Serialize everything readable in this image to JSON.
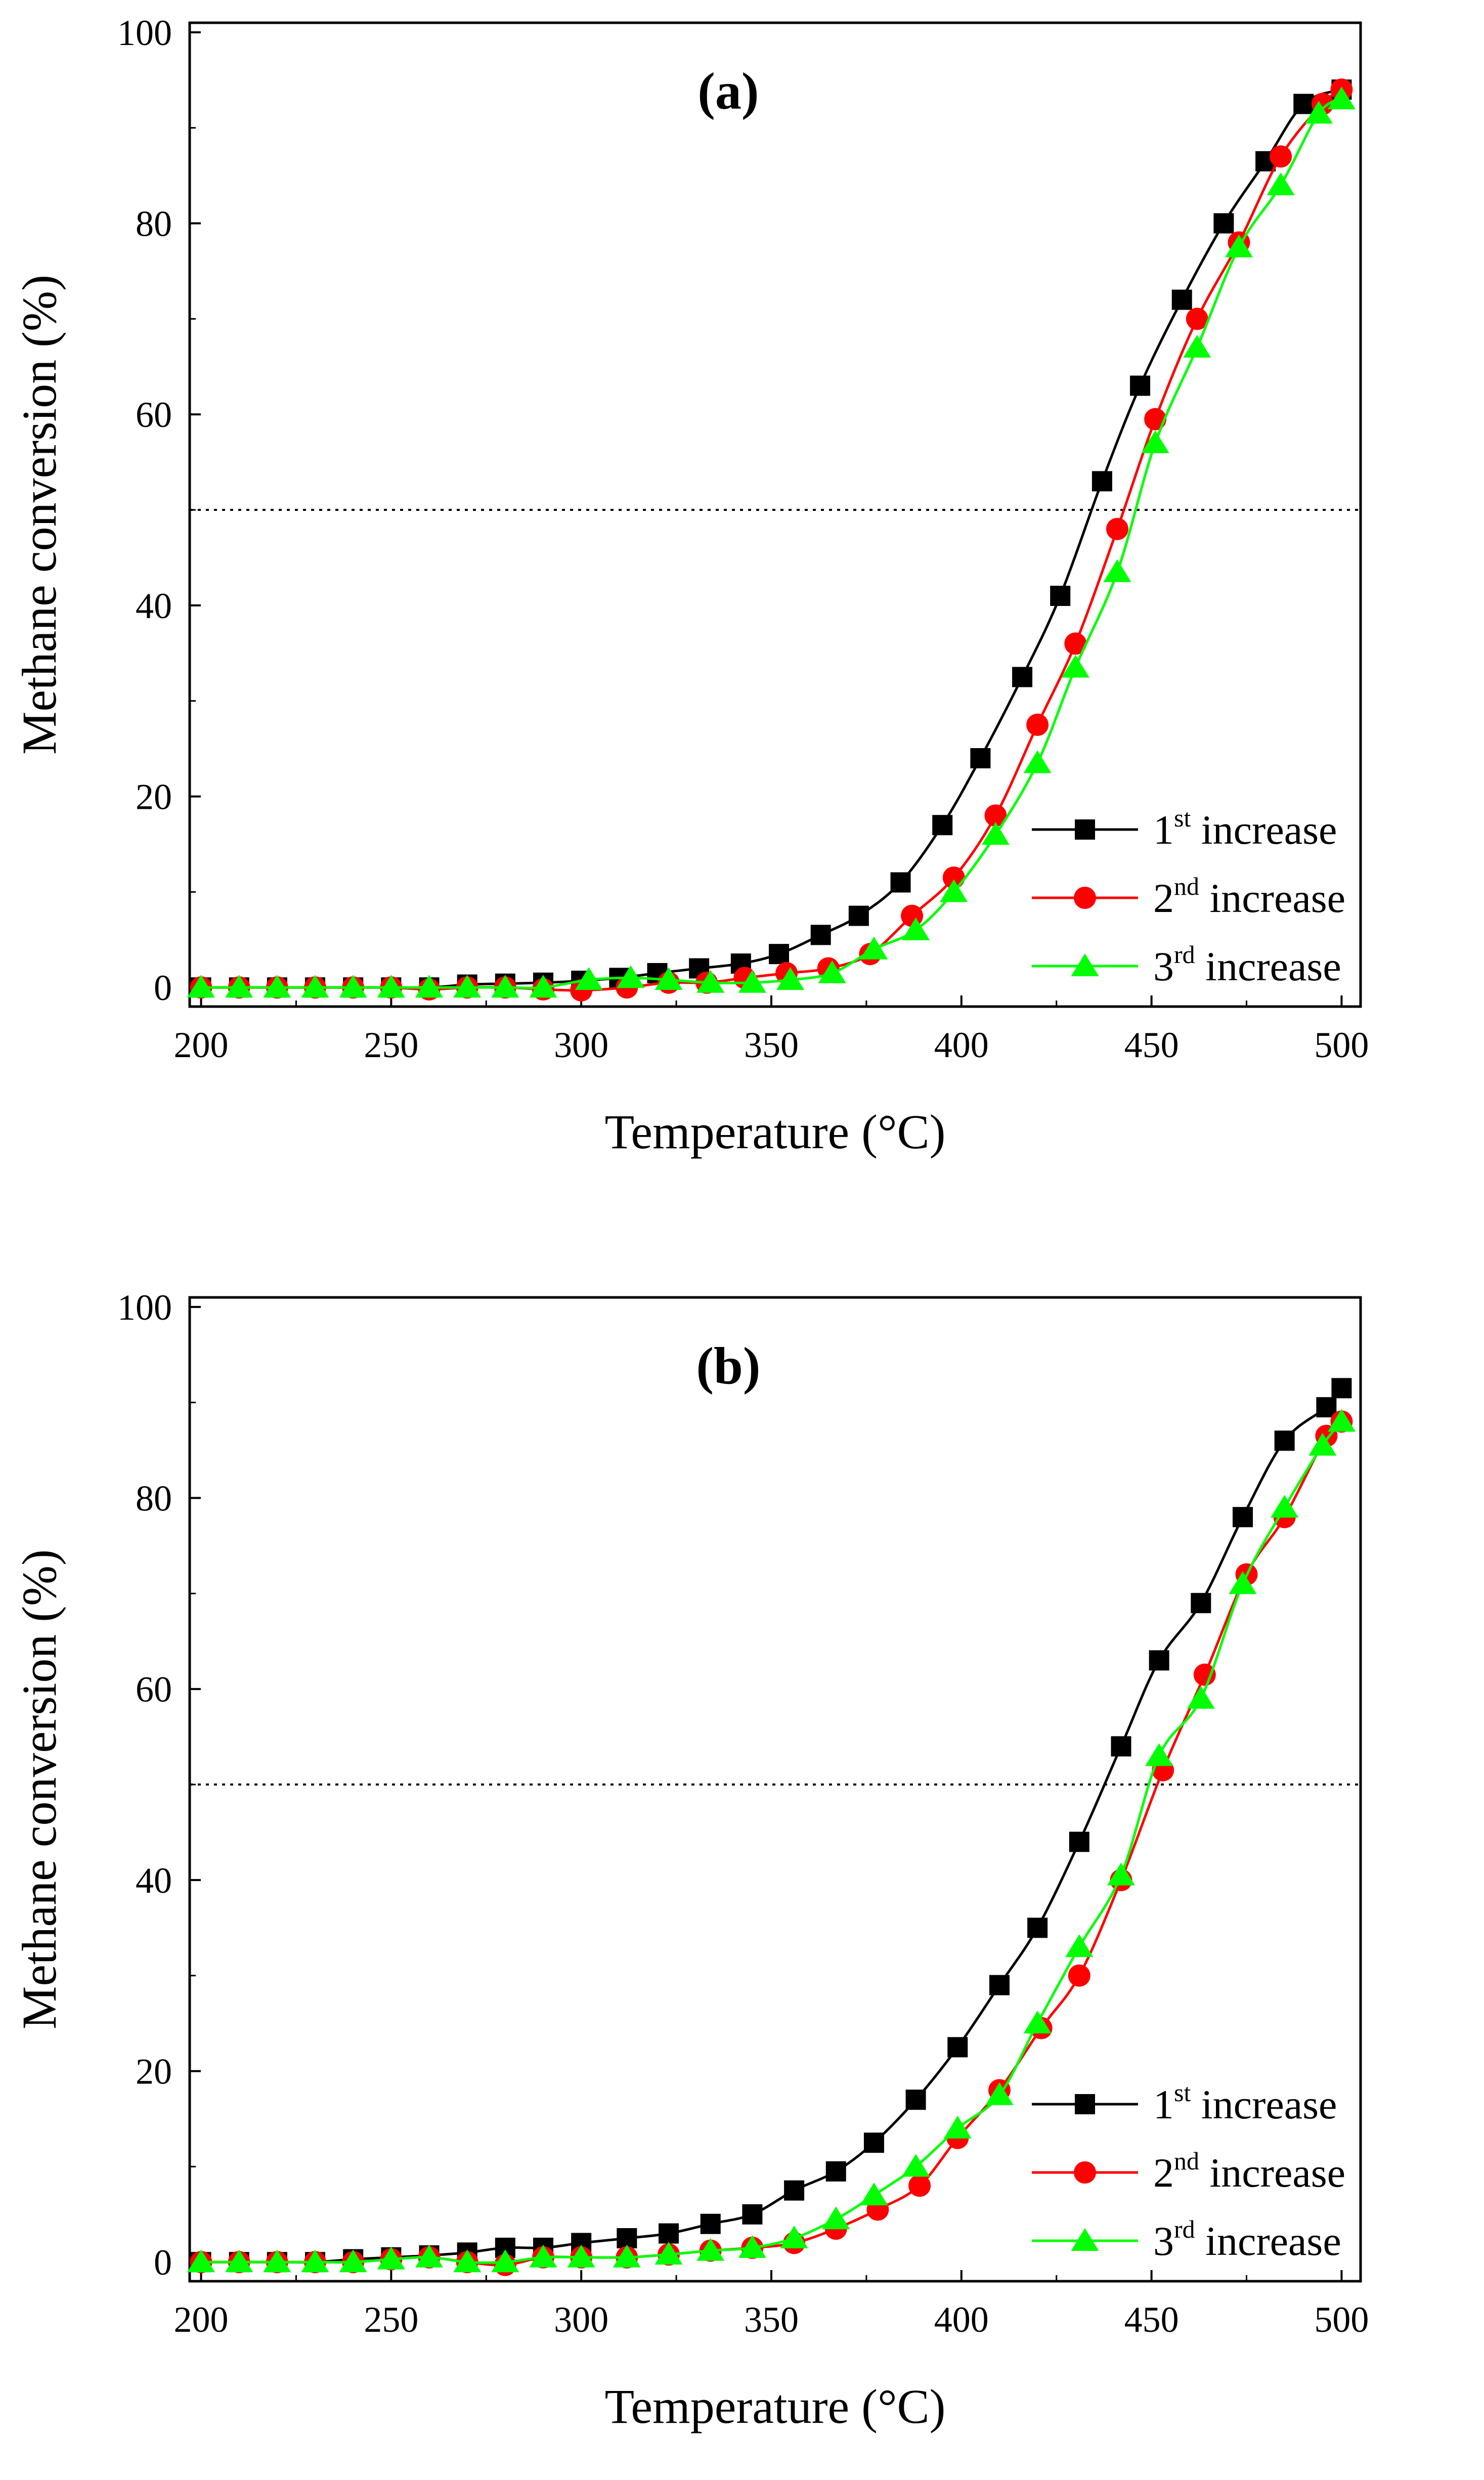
{
  "figure": {
    "panels": [
      {
        "panel_label": "(a)",
        "xlabel": "Temperature (°C)",
        "ylabel": "Methane conversion (%)",
        "reference_line": 50,
        "legend": [
          {
            "num": "1",
            "sup": "st",
            "text": " increase"
          },
          {
            "num": "2",
            "sup": "nd",
            "text": " increase"
          },
          {
            "num": "3",
            "sup": "rd",
            "text": " increase"
          }
        ]
      },
      {
        "panel_label": "(b)",
        "xlabel": "Temperature (°C)",
        "ylabel": "Methane conversion (%)",
        "reference_line": 50,
        "legend": [
          {
            "num": "1",
            "sup": "st",
            "text": " increase"
          },
          {
            "num": "2",
            "sup": "nd",
            "text": " increase"
          },
          {
            "num": "3",
            "sup": "rd",
            "text": " increase"
          }
        ]
      }
    ]
  },
  "chart_data": [
    {
      "type": "line",
      "title": "(a)",
      "xlabel": "Temperature (°C)",
      "ylabel": "Methane conversion (%)",
      "xlim": [
        197,
        505
      ],
      "ylim": [
        -2,
        101
      ],
      "xticks": [
        200,
        250,
        300,
        350,
        400,
        450,
        500
      ],
      "yticks": [
        0,
        20,
        40,
        60,
        80,
        100
      ],
      "grid": false,
      "legend_position": "lower-right",
      "reference_lines": [
        {
          "y": 50,
          "style": "dotted"
        }
      ],
      "series": [
        {
          "name": "1st increase",
          "color": "#000000",
          "marker": "square",
          "x": [
            200,
            210,
            220,
            230,
            240,
            250,
            260,
            270,
            280,
            290,
            300,
            310,
            320,
            331,
            342,
            352,
            363,
            373,
            384,
            395,
            405,
            416,
            426,
            437,
            447,
            458,
            469,
            480,
            490,
            500
          ],
          "y": [
            0,
            0,
            0,
            0,
            0,
            0,
            0,
            0.3,
            0.4,
            0.5,
            0.7,
            1.0,
            1.5,
            2.0,
            2.5,
            3.5,
            5.5,
            7.5,
            11,
            17,
            24,
            32.5,
            41,
            53,
            63,
            72,
            80,
            86.5,
            92.5,
            94
          ]
        },
        {
          "name": "2nd increase",
          "color": "#ff0000",
          "marker": "circle",
          "x": [
            200,
            210,
            220,
            230,
            240,
            250,
            260,
            270,
            280,
            290,
            300,
            312,
            323,
            333,
            343,
            354,
            365,
            376,
            387,
            398,
            409,
            420,
            430,
            441,
            451,
            462,
            473,
            484,
            495,
            500
          ],
          "y": [
            0,
            0,
            0,
            0,
            0,
            0,
            -0.2,
            0,
            0,
            -0.2,
            -0.3,
            0,
            0.5,
            0.5,
            1.0,
            1.5,
            2.0,
            3.5,
            7.5,
            11.5,
            18,
            27.5,
            36,
            48,
            59.5,
            70,
            78,
            87,
            92.5,
            94
          ]
        },
        {
          "name": "3rd increase",
          "color": "#00ff00",
          "marker": "triangle",
          "x": [
            200,
            210,
            220,
            230,
            240,
            250,
            260,
            270,
            280,
            290,
            302,
            313,
            323,
            334,
            345,
            355,
            366,
            377,
            388,
            398,
            409,
            420,
            430,
            441,
            451,
            462,
            473,
            484,
            494,
            500
          ],
          "y": [
            0,
            0,
            0,
            0,
            0,
            0,
            0,
            0,
            0,
            0,
            0.8,
            1.0,
            0.8,
            0.5,
            0.5,
            0.8,
            1.5,
            4.0,
            6.0,
            10,
            16,
            23.5,
            33.5,
            43.5,
            57,
            67,
            77.5,
            84,
            91.5,
            93
          ]
        }
      ]
    },
    {
      "type": "line",
      "title": "(b)",
      "xlabel": "Temperature (°C)",
      "ylabel": "Methane conversion (%)",
      "xlim": [
        197,
        505
      ],
      "ylim": [
        -2,
        101
      ],
      "xticks": [
        200,
        250,
        300,
        350,
        400,
        450,
        500
      ],
      "yticks": [
        0,
        20,
        40,
        60,
        80,
        100
      ],
      "grid": false,
      "legend_position": "lower-right",
      "reference_lines": [
        {
          "y": 50,
          "style": "dotted"
        }
      ],
      "series": [
        {
          "name": "1st increase",
          "color": "#000000",
          "marker": "square",
          "x": [
            200,
            210,
            220,
            230,
            240,
            250,
            260,
            270,
            280,
            290,
            300,
            312,
            323,
            334,
            345,
            356,
            367,
            377,
            388,
            399,
            410,
            420,
            431,
            442,
            452,
            463,
            474,
            485,
            496,
            500
          ],
          "y": [
            0,
            0,
            0,
            0,
            0.3,
            0.5,
            0.7,
            1.0,
            1.5,
            1.5,
            2.0,
            2.5,
            3.0,
            4.0,
            5.0,
            7.5,
            9.5,
            12.5,
            17,
            22.5,
            29,
            35,
            44,
            54,
            63,
            69,
            78,
            86,
            89.5,
            91.5
          ]
        },
        {
          "name": "2nd increase",
          "color": "#ff0000",
          "marker": "circle",
          "x": [
            200,
            210,
            220,
            230,
            240,
            250,
            260,
            270,
            280,
            290,
            300,
            312,
            323,
            334,
            345,
            356,
            367,
            378,
            389,
            399,
            410,
            421,
            431,
            442,
            453,
            464,
            475,
            485,
            496,
            500
          ],
          "y": [
            0,
            0,
            0,
            0,
            0,
            0.3,
            0.5,
            0,
            -0.3,
            0.5,
            0.5,
            0.5,
            0.8,
            1.2,
            1.5,
            2.0,
            3.5,
            5.5,
            8.0,
            13,
            18,
            24.5,
            30,
            40,
            51.5,
            61.5,
            72,
            78,
            86.5,
            88
          ]
        },
        {
          "name": "3rd increase",
          "color": "#00ff00",
          "marker": "triangle",
          "x": [
            200,
            210,
            220,
            230,
            240,
            250,
            260,
            270,
            280,
            290,
            300,
            312,
            323,
            334,
            345,
            356,
            367,
            377,
            388,
            399,
            410,
            420,
            431,
            442,
            452,
            463,
            474,
            485,
            495,
            500
          ],
          "y": [
            0,
            0,
            0,
            0,
            0,
            0.3,
            0.5,
            0,
            0,
            0.5,
            0.5,
            0.5,
            0.8,
            1.2,
            1.5,
            2.5,
            4.5,
            7.0,
            10,
            14,
            17.5,
            25,
            33,
            40.5,
            53,
            59,
            71,
            79,
            85.5,
            88
          ]
        }
      ]
    }
  ]
}
